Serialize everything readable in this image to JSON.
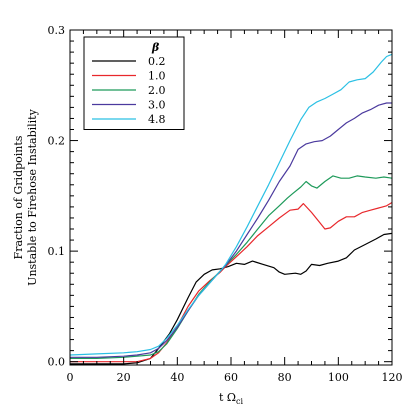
{
  "chart_data": {
    "type": "line",
    "title": "",
    "xlabel": "t Ω",
    "xlabel_sub": "ci",
    "ylabel_lines": [
      "Fraction of Gridpoints",
      "Unstable to Firehose Instability"
    ],
    "xlim": [
      0,
      120
    ],
    "ylim": [
      -0.003,
      0.3
    ],
    "x_ticks": [
      0,
      20,
      40,
      60,
      80,
      100,
      120
    ],
    "y_ticks": [
      0.0,
      0.1,
      0.2,
      0.3
    ],
    "x_tick_labels": [
      "0",
      "20",
      "40",
      "60",
      "80",
      "100",
      "120"
    ],
    "y_tick_labels": [
      "0.0",
      "0.1",
      "0.2",
      "0.3"
    ],
    "grid": false,
    "legend_title": "β",
    "legend_position": "top-left",
    "series": [
      {
        "name": "0.2",
        "color": "#000000",
        "points": [
          [
            0,
            -0.002
          ],
          [
            10,
            -0.002
          ],
          [
            20,
            -0.002
          ],
          [
            25,
            -0.001
          ],
          [
            30,
            0.003
          ],
          [
            33,
            0.012
          ],
          [
            37,
            0.025
          ],
          [
            40,
            0.038
          ],
          [
            44,
            0.058
          ],
          [
            47,
            0.072
          ],
          [
            50,
            0.079
          ],
          [
            53,
            0.083
          ],
          [
            56,
            0.084
          ],
          [
            59,
            0.086
          ],
          [
            62,
            0.089
          ],
          [
            65,
            0.088
          ],
          [
            68,
            0.091
          ],
          [
            72,
            0.088
          ],
          [
            76,
            0.085
          ],
          [
            78,
            0.081
          ],
          [
            80,
            0.079
          ],
          [
            84,
            0.08
          ],
          [
            86,
            0.079
          ],
          [
            88,
            0.082
          ],
          [
            90,
            0.088
          ],
          [
            93,
            0.087
          ],
          [
            96,
            0.089
          ],
          [
            100,
            0.091
          ],
          [
            103,
            0.094
          ],
          [
            106,
            0.101
          ],
          [
            110,
            0.106
          ],
          [
            114,
            0.111
          ],
          [
            117,
            0.115
          ],
          [
            120,
            0.116
          ]
        ]
      },
      {
        "name": "1.0",
        "color": "#e8282c",
        "points": [
          [
            0,
            0.0
          ],
          [
            10,
            0.0
          ],
          [
            20,
            0.0
          ],
          [
            25,
            0.0
          ],
          [
            30,
            0.003
          ],
          [
            33,
            0.008
          ],
          [
            36,
            0.017
          ],
          [
            40,
            0.032
          ],
          [
            44,
            0.05
          ],
          [
            48,
            0.064
          ],
          [
            52,
            0.073
          ],
          [
            56,
            0.081
          ],
          [
            58,
            0.086
          ],
          [
            62,
            0.095
          ],
          [
            66,
            0.104
          ],
          [
            70,
            0.114
          ],
          [
            74,
            0.122
          ],
          [
            78,
            0.13
          ],
          [
            82,
            0.137
          ],
          [
            85,
            0.138
          ],
          [
            87,
            0.143
          ],
          [
            90,
            0.135
          ],
          [
            93,
            0.126
          ],
          [
            95,
            0.12
          ],
          [
            97,
            0.121
          ],
          [
            100,
            0.127
          ],
          [
            103,
            0.131
          ],
          [
            106,
            0.131
          ],
          [
            109,
            0.135
          ],
          [
            112,
            0.137
          ],
          [
            115,
            0.139
          ],
          [
            118,
            0.141
          ],
          [
            120,
            0.144
          ]
        ]
      },
      {
        "name": "2.0",
        "color": "#1e9a5a",
        "points": [
          [
            0,
            0.003
          ],
          [
            10,
            0.003
          ],
          [
            20,
            0.004
          ],
          [
            25,
            0.005
          ],
          [
            30,
            0.006
          ],
          [
            33,
            0.009
          ],
          [
            36,
            0.016
          ],
          [
            40,
            0.03
          ],
          [
            44,
            0.046
          ],
          [
            48,
            0.061
          ],
          [
            52,
            0.072
          ],
          [
            56,
            0.082
          ],
          [
            58,
            0.087
          ],
          [
            62,
            0.097
          ],
          [
            66,
            0.108
          ],
          [
            70,
            0.12
          ],
          [
            74,
            0.132
          ],
          [
            78,
            0.141
          ],
          [
            81,
            0.148
          ],
          [
            83,
            0.152
          ],
          [
            86,
            0.158
          ],
          [
            88,
            0.163
          ],
          [
            90,
            0.159
          ],
          [
            92,
            0.157
          ],
          [
            95,
            0.163
          ],
          [
            98,
            0.168
          ],
          [
            101,
            0.166
          ],
          [
            104,
            0.166
          ],
          [
            107,
            0.168
          ],
          [
            110,
            0.167
          ],
          [
            114,
            0.166
          ],
          [
            117,
            0.167
          ],
          [
            120,
            0.166
          ]
        ]
      },
      {
        "name": "3.0",
        "color": "#4b3a9e",
        "points": [
          [
            0,
            0.004
          ],
          [
            10,
            0.004
          ],
          [
            20,
            0.005
          ],
          [
            25,
            0.006
          ],
          [
            30,
            0.008
          ],
          [
            33,
            0.012
          ],
          [
            36,
            0.019
          ],
          [
            40,
            0.031
          ],
          [
            44,
            0.046
          ],
          [
            48,
            0.06
          ],
          [
            52,
            0.071
          ],
          [
            56,
            0.082
          ],
          [
            58,
            0.087
          ],
          [
            62,
            0.1
          ],
          [
            66,
            0.115
          ],
          [
            70,
            0.13
          ],
          [
            74,
            0.146
          ],
          [
            78,
            0.163
          ],
          [
            82,
            0.177
          ],
          [
            85,
            0.192
          ],
          [
            88,
            0.197
          ],
          [
            91,
            0.199
          ],
          [
            94,
            0.2
          ],
          [
            97,
            0.204
          ],
          [
            100,
            0.21
          ],
          [
            103,
            0.216
          ],
          [
            106,
            0.22
          ],
          [
            109,
            0.225
          ],
          [
            112,
            0.228
          ],
          [
            115,
            0.232
          ],
          [
            118,
            0.234
          ],
          [
            120,
            0.234
          ]
        ]
      },
      {
        "name": "4.8",
        "color": "#2bc0e4",
        "points": [
          [
            0,
            0.006
          ],
          [
            10,
            0.007
          ],
          [
            20,
            0.008
          ],
          [
            25,
            0.009
          ],
          [
            30,
            0.011
          ],
          [
            33,
            0.014
          ],
          [
            36,
            0.021
          ],
          [
            40,
            0.033
          ],
          [
            44,
            0.047
          ],
          [
            48,
            0.06
          ],
          [
            52,
            0.071
          ],
          [
            56,
            0.082
          ],
          [
            58,
            0.088
          ],
          [
            62,
            0.104
          ],
          [
            66,
            0.122
          ],
          [
            70,
            0.141
          ],
          [
            74,
            0.16
          ],
          [
            78,
            0.18
          ],
          [
            82,
            0.2
          ],
          [
            86,
            0.219
          ],
          [
            89,
            0.23
          ],
          [
            92,
            0.235
          ],
          [
            95,
            0.238
          ],
          [
            98,
            0.242
          ],
          [
            101,
            0.246
          ],
          [
            104,
            0.253
          ],
          [
            107,
            0.255
          ],
          [
            110,
            0.256
          ],
          [
            113,
            0.262
          ],
          [
            116,
            0.271
          ],
          [
            118,
            0.276
          ],
          [
            120,
            0.278
          ]
        ]
      }
    ]
  }
}
